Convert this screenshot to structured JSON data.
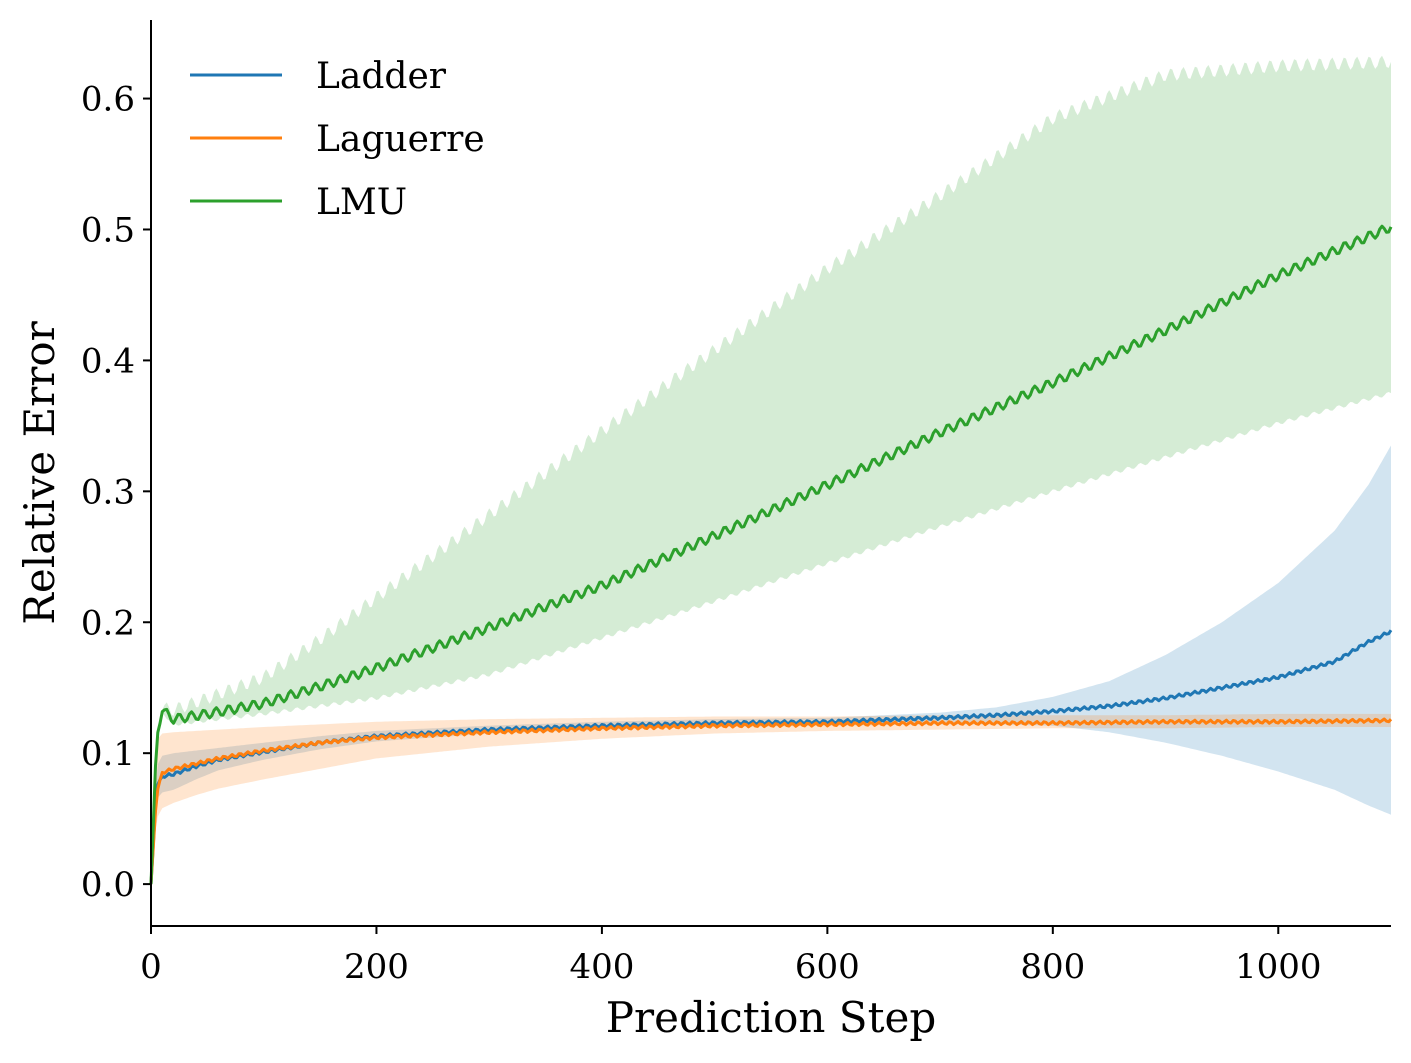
{
  "chart_data": {
    "type": "line",
    "title": "",
    "xlabel": "Prediction Step",
    "ylabel": "Relative Error",
    "xlim": [
      0,
      1100
    ],
    "ylim": [
      -0.032,
      0.66
    ],
    "xticks": [
      0,
      200,
      400,
      600,
      800,
      1000
    ],
    "xtick_labels": [
      "0",
      "200",
      "400",
      "600",
      "800",
      "1000"
    ],
    "yticks": [
      0.0,
      0.1,
      0.2,
      0.3,
      0.4,
      0.5,
      0.6
    ],
    "ytick_labels": [
      "0.0",
      "0.1",
      "0.2",
      "0.3",
      "0.4",
      "0.5",
      "0.6"
    ],
    "grid": false,
    "legend_position": "top-left",
    "shaded_band": "mean ± spread",
    "series": [
      {
        "name": "Ladder",
        "color": "#1f77b4",
        "band_color": "#1f77b4",
        "x": [
          0,
          5,
          10,
          20,
          40,
          60,
          100,
          150,
          200,
          300,
          400,
          500,
          600,
          700,
          750,
          800,
          850,
          900,
          950,
          1000,
          1050,
          1080,
          1100
        ],
        "mean": [
          0.0,
          0.075,
          0.082,
          0.084,
          0.09,
          0.095,
          0.101,
          0.108,
          0.113,
          0.118,
          0.121,
          0.123,
          0.124,
          0.127,
          0.129,
          0.132,
          0.136,
          0.142,
          0.15,
          0.158,
          0.17,
          0.185,
          0.193
        ],
        "lower": [
          0.0,
          0.065,
          0.07,
          0.072,
          0.08,
          0.087,
          0.095,
          0.103,
          0.109,
          0.115,
          0.118,
          0.12,
          0.121,
          0.122,
          0.122,
          0.121,
          0.116,
          0.108,
          0.098,
          0.086,
          0.072,
          0.06,
          0.053
        ],
        "upper": [
          0.0,
          0.09,
          0.098,
          0.1,
          0.102,
          0.104,
          0.108,
          0.113,
          0.117,
          0.121,
          0.124,
          0.126,
          0.127,
          0.131,
          0.135,
          0.143,
          0.155,
          0.175,
          0.2,
          0.23,
          0.27,
          0.305,
          0.335
        ]
      },
      {
        "name": "Laguerre",
        "color": "#ff7f0e",
        "band_color": "#ff7f0e",
        "x": [
          0,
          5,
          10,
          20,
          40,
          60,
          100,
          150,
          200,
          300,
          400,
          500,
          600,
          700,
          800,
          900,
          1000,
          1100
        ],
        "mean": [
          0.0,
          0.07,
          0.085,
          0.088,
          0.092,
          0.096,
          0.102,
          0.108,
          0.112,
          0.116,
          0.119,
          0.121,
          0.122,
          0.123,
          0.123,
          0.124,
          0.124,
          0.125
        ],
        "lower": [
          0.0,
          0.05,
          0.058,
          0.062,
          0.068,
          0.073,
          0.08,
          0.088,
          0.096,
          0.105,
          0.111,
          0.115,
          0.117,
          0.118,
          0.119,
          0.119,
          0.12,
          0.12
        ],
        "upper": [
          0.0,
          0.11,
          0.115,
          0.116,
          0.117,
          0.118,
          0.12,
          0.122,
          0.124,
          0.126,
          0.127,
          0.128,
          0.128,
          0.129,
          0.129,
          0.129,
          0.13,
          0.13
        ]
      },
      {
        "name": "LMU",
        "color": "#2ca02c",
        "band_color": "#2ca02c",
        "x": [
          0,
          5,
          10,
          20,
          50,
          100,
          150,
          200,
          300,
          400,
          500,
          600,
          700,
          800,
          900,
          1000,
          1100
        ],
        "mean": [
          0.0,
          0.112,
          0.133,
          0.126,
          0.13,
          0.138,
          0.151,
          0.165,
          0.196,
          0.228,
          0.266,
          0.305,
          0.345,
          0.383,
          0.423,
          0.465,
          0.502
        ],
        "lower": [
          0.0,
          0.11,
          0.131,
          0.122,
          0.125,
          0.13,
          0.136,
          0.142,
          0.16,
          0.188,
          0.216,
          0.245,
          0.273,
          0.3,
          0.326,
          0.352,
          0.375
        ],
        "upper": [
          0.0,
          0.114,
          0.135,
          0.133,
          0.142,
          0.158,
          0.187,
          0.219,
          0.282,
          0.346,
          0.408,
          0.47,
          0.526,
          0.585,
          0.618,
          0.625,
          0.628
        ]
      }
    ]
  }
}
